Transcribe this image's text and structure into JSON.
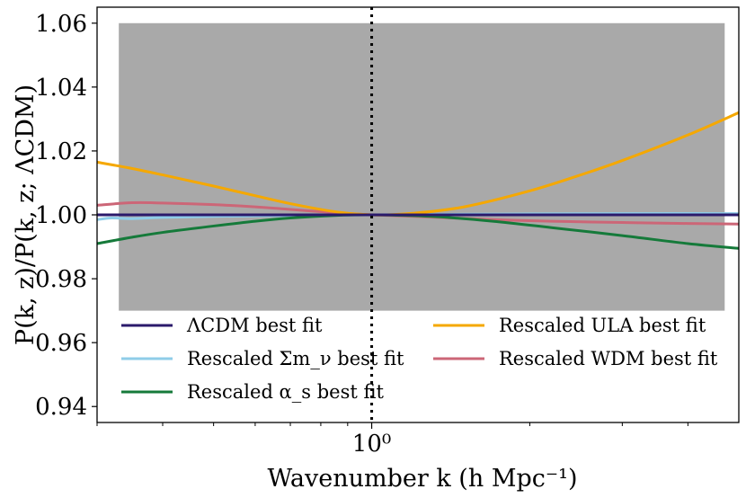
{
  "chart_data": {
    "type": "line",
    "xlabel": "Wavenumber k (h Mpc⁻¹)",
    "ylabel": "P(k, z)/P(k, z; ΛCDM)",
    "xscale": "log",
    "xlim": [
      0.3,
      5.0
    ],
    "ylim": [
      0.935,
      1.065
    ],
    "x_tick_labels": [
      "10⁰"
    ],
    "y_ticks": [
      0.94,
      0.96,
      0.98,
      1.0,
      1.02,
      1.04,
      1.06
    ],
    "y_tick_labels": [
      "0.94",
      "0.96",
      "0.98",
      "1.00",
      "1.02",
      "1.04",
      "1.06"
    ],
    "shaded_region": {
      "x": [
        0.33,
        4.7
      ],
      "y": [
        0.97,
        1.06
      ],
      "color": "#a9a9a9"
    },
    "reference_line": {
      "x": 1.0,
      "style": "dotted",
      "color": "#000000"
    },
    "legend": {
      "location": "lower center",
      "columns": 2
    },
    "series": [
      {
        "name": "ΛCDM best fit",
        "color": "#2b1a6b",
        "x": [
          0.3,
          0.5,
          1.0,
          2.0,
          5.0
        ],
        "y": [
          1.0,
          1.0,
          1.0,
          1.0,
          1.0
        ]
      },
      {
        "name": "Rescaled Σm_ν best fit",
        "color": "#8fcde8",
        "x": [
          0.3,
          0.32,
          0.35,
          0.4,
          0.5,
          0.7,
          1.0,
          1.5,
          2.0,
          3.0,
          5.0
        ],
        "y": [
          0.9985,
          0.999,
          0.9988,
          0.9992,
          0.9995,
          0.9998,
          1.0,
          1.0002,
          1.0003,
          1.0004,
          1.0004
        ]
      },
      {
        "name": "Rescaled α_s best fit",
        "color": "#157a3a",
        "x": [
          0.3,
          0.35,
          0.4,
          0.5,
          0.6,
          0.7,
          0.85,
          1.0,
          1.3,
          1.7,
          2.2,
          3.0,
          4.0,
          5.0
        ],
        "y": [
          0.991,
          0.993,
          0.9945,
          0.9965,
          0.998,
          0.999,
          0.9998,
          1.0,
          0.9995,
          0.998,
          0.996,
          0.9935,
          0.991,
          0.9895
        ]
      },
      {
        "name": "Rescaled ULA best fit",
        "color": "#f5a800",
        "x": [
          0.3,
          0.35,
          0.4,
          0.5,
          0.6,
          0.7,
          0.85,
          1.0,
          1.2,
          1.5,
          2.0,
          2.5,
          3.0,
          4.0,
          5.0
        ],
        "y": [
          1.0165,
          1.0145,
          1.0125,
          1.009,
          1.006,
          1.0035,
          1.001,
          1.0,
          1.0005,
          1.0025,
          1.0075,
          1.0125,
          1.017,
          1.025,
          1.032
        ]
      },
      {
        "name": "Rescaled WDM best fit",
        "color": "#cc6677",
        "x": [
          0.3,
          0.35,
          0.4,
          0.5,
          0.6,
          0.7,
          0.85,
          1.0,
          1.3,
          1.7,
          2.2,
          3.0,
          4.0,
          5.0
        ],
        "y": [
          1.003,
          1.0038,
          1.0037,
          1.0032,
          1.0025,
          1.0017,
          1.0007,
          1.0,
          0.9993,
          0.9985,
          0.998,
          0.9976,
          0.9973,
          0.9971
        ]
      }
    ]
  }
}
